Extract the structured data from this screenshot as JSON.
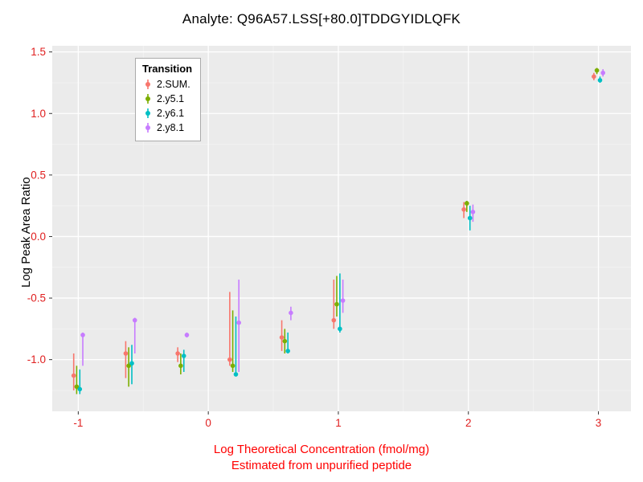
{
  "chart_data": {
    "type": "scatter",
    "title": "Analyte: Q96A57.LSS[+80.0]TDDGYIDLQFK",
    "ylabel": "Log Peak Area Ratio",
    "xlabel": "Log Theoretical Concentration (fmol/mg)",
    "xlabel_sub": "Estimated from unpurified peptide",
    "legend_title": "Transition",
    "legend_position": "top-left-inside",
    "panel_bg": "#ebebeb",
    "grid_major_color": "#ffffff",
    "grid_minor_color": "#f5f5f5",
    "axis_title_color": "#ff0000",
    "tick_label_color": "#e02020",
    "tick_mark_color": "#333333",
    "xlim": [
      -1.2,
      3.25
    ],
    "ylim": [
      -1.42,
      1.55
    ],
    "xticks": [
      -1,
      0,
      1,
      2,
      3
    ],
    "xtick_labels": [
      "-1",
      "0",
      "1",
      "2",
      "3"
    ],
    "yticks": [
      -1.0,
      -0.5,
      0.0,
      0.5,
      1.0,
      1.5
    ],
    "ytick_labels": [
      "-1.0",
      "-0.5",
      "0.0",
      "0.5",
      "1.0",
      "1.5"
    ],
    "xticks_minor": [
      -0.5,
      0.5,
      1.5,
      2.5
    ],
    "yticks_minor": [
      -1.25,
      -0.75,
      -0.25,
      0.25,
      0.75,
      1.25
    ],
    "dodge": [
      -0.035,
      -0.012,
      0.012,
      0.035
    ],
    "series": [
      {
        "name": "2.SUM.",
        "color": "#F8766D",
        "points": [
          {
            "x": -1.0,
            "y": -1.13,
            "lo": -1.25,
            "hi": -0.95
          },
          {
            "x": -0.6,
            "y": -0.95,
            "lo": -1.15,
            "hi": -0.85
          },
          {
            "x": -0.2,
            "y": -0.95,
            "lo": -1.02,
            "hi": -0.9
          },
          {
            "x": 0.2,
            "y": -1.0,
            "lo": -1.05,
            "hi": -0.45
          },
          {
            "x": 0.6,
            "y": -0.82,
            "lo": -0.93,
            "hi": -0.68
          },
          {
            "x": 1.0,
            "y": -0.68,
            "lo": -0.75,
            "hi": -0.35
          },
          {
            "x": 2.0,
            "y": 0.22,
            "lo": 0.15,
            "hi": 0.28
          },
          {
            "x": 3.0,
            "y": 1.3,
            "lo": 1.27,
            "hi": 1.33
          }
        ]
      },
      {
        "name": "2.y5.1",
        "color": "#7CAE00",
        "points": [
          {
            "x": -1.0,
            "y": -1.22,
            "lo": -1.28,
            "hi": -1.05
          },
          {
            "x": -0.6,
            "y": -1.05,
            "lo": -1.22,
            "hi": -0.9
          },
          {
            "x": -0.2,
            "y": -1.05,
            "lo": -1.12,
            "hi": -0.95
          },
          {
            "x": 0.2,
            "y": -1.05,
            "lo": -1.1,
            "hi": -0.6
          },
          {
            "x": 0.6,
            "y": -0.85,
            "lo": -0.95,
            "hi": -0.75
          },
          {
            "x": 1.0,
            "y": -0.55,
            "lo": -0.65,
            "hi": -0.32
          },
          {
            "x": 2.0,
            "y": 0.27,
            "lo": 0.2,
            "hi": 0.29
          },
          {
            "x": 3.0,
            "y": 1.35,
            "lo": 1.32,
            "hi": 1.37
          }
        ]
      },
      {
        "name": "2.y6.1",
        "color": "#00BFC4",
        "points": [
          {
            "x": -1.0,
            "y": -1.24,
            "lo": -1.28,
            "hi": -1.08
          },
          {
            "x": -0.6,
            "y": -1.03,
            "lo": -1.2,
            "hi": -0.88
          },
          {
            "x": -0.2,
            "y": -0.97,
            "lo": -1.1,
            "hi": -0.92
          },
          {
            "x": 0.2,
            "y": -1.12,
            "lo": -1.13,
            "hi": -0.65
          },
          {
            "x": 0.6,
            "y": -0.93,
            "lo": -0.95,
            "hi": -0.78
          },
          {
            "x": 1.0,
            "y": -0.75,
            "lo": -0.78,
            "hi": -0.3
          },
          {
            "x": 2.0,
            "y": 0.15,
            "lo": 0.05,
            "hi": 0.25
          },
          {
            "x": 3.0,
            "y": 1.27,
            "lo": 1.25,
            "hi": 1.3
          }
        ]
      },
      {
        "name": "2.y8.1",
        "color": "#C77CFF",
        "points": [
          {
            "x": -1.0,
            "y": -0.8,
            "lo": -1.05,
            "hi": -0.78
          },
          {
            "x": -0.6,
            "y": -0.68,
            "lo": -0.95,
            "hi": -0.66
          },
          {
            "x": -0.2,
            "y": -0.8,
            "lo": -0.82,
            "hi": -0.78
          },
          {
            "x": 0.2,
            "y": -0.7,
            "lo": -1.1,
            "hi": -0.35
          },
          {
            "x": 0.6,
            "y": -0.62,
            "lo": -0.68,
            "hi": -0.57
          },
          {
            "x": 1.0,
            "y": -0.52,
            "lo": -0.62,
            "hi": -0.35
          },
          {
            "x": 2.0,
            "y": 0.2,
            "lo": 0.12,
            "hi": 0.26
          },
          {
            "x": 3.0,
            "y": 1.33,
            "lo": 1.3,
            "hi": 1.36
          }
        ]
      }
    ]
  }
}
